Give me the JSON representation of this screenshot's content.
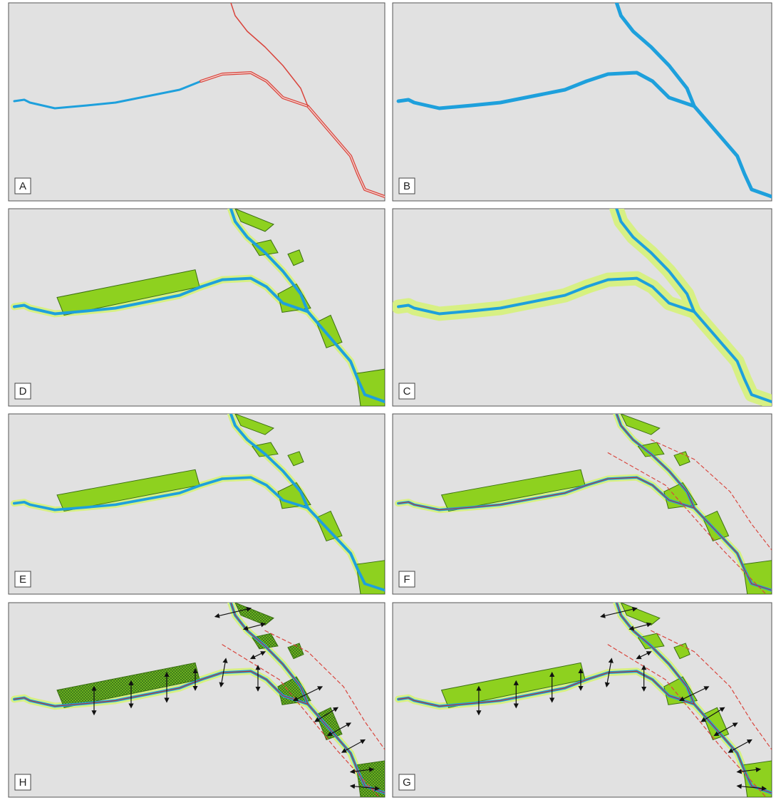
{
  "panels": [
    {
      "label": "A"
    },
    {
      "label": "B"
    },
    {
      "label": "D"
    },
    {
      "label": "C"
    },
    {
      "label": "E"
    },
    {
      "label": "F"
    },
    {
      "label": "H"
    },
    {
      "label": "G"
    }
  ]
}
